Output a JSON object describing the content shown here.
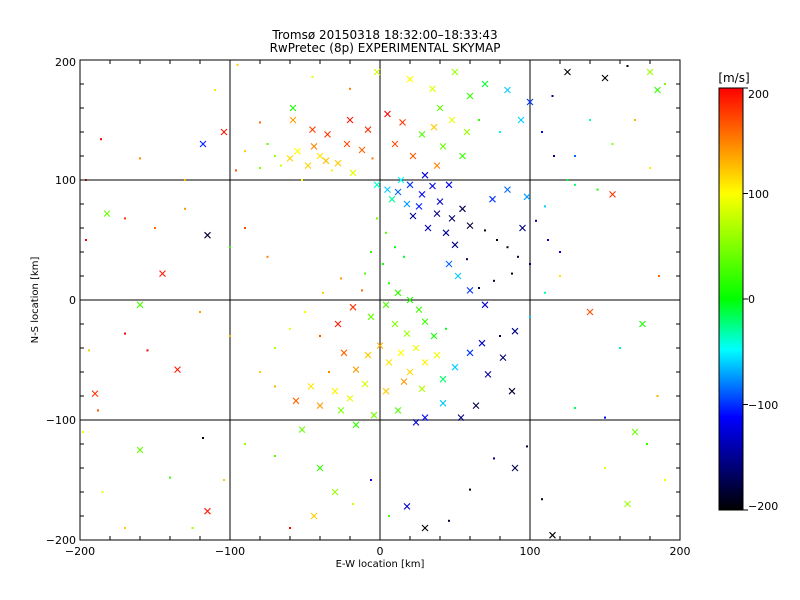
{
  "chart_data": {
    "type": "scatter",
    "title": "Tromsø 20150318 18:32:00–18:33:43",
    "subtitle": "RwPretec (8p) EXPERIMENTAL SKYMAP",
    "xlabel": "E-W location [km]",
    "ylabel": "N-S location [km]",
    "xlim": [
      -200,
      200
    ],
    "ylim": [
      -200,
      200
    ],
    "xticks": [
      "−200",
      "−100",
      "0",
      "100",
      "200"
    ],
    "yticks": [
      "−200",
      "−100",
      "0",
      "100",
      "200"
    ],
    "grid": true,
    "colorbar": {
      "label": "[m/s]",
      "range": [
        -200,
        200
      ],
      "ticks": [
        "200",
        "100",
        "0",
        "−100",
        "−200"
      ],
      "colormap": [
        "#000000",
        "#0000ff",
        "#00ffff",
        "#00ff00",
        "#ffff00",
        "#ff0000"
      ]
    },
    "markers": [
      "cross",
      "dot"
    ],
    "points": [
      [
        -118,
        130,
        -95,
        "x"
      ],
      [
        -104,
        140,
        190,
        "x"
      ],
      [
        -80,
        148,
        160,
        "d"
      ],
      [
        -58,
        150,
        140,
        "x"
      ],
      [
        -45,
        142,
        175,
        "x"
      ],
      [
        -35,
        138,
        180,
        "x"
      ],
      [
        -22,
        130,
        170,
        "x"
      ],
      [
        -12,
        125,
        160,
        "x"
      ],
      [
        -5,
        118,
        155,
        "d"
      ],
      [
        10,
        130,
        170,
        "x"
      ],
      [
        22,
        120,
        165,
        "x"
      ],
      [
        38,
        112,
        150,
        "x"
      ],
      [
        -60,
        118,
        115,
        "x"
      ],
      [
        -48,
        112,
        118,
        "x"
      ],
      [
        -40,
        120,
        110,
        "x"
      ],
      [
        -32,
        108,
        105,
        "d"
      ],
      [
        -52,
        100,
        95,
        "d"
      ],
      [
        -28,
        114,
        120,
        "x"
      ],
      [
        -18,
        106,
        90,
        "x"
      ],
      [
        -44,
        128,
        150,
        "x"
      ],
      [
        -55,
        124,
        100,
        "x"
      ],
      [
        -36,
        116,
        125,
        "x"
      ],
      [
        -66,
        112,
        80,
        "d"
      ],
      [
        -70,
        120,
        60,
        "d"
      ],
      [
        -80,
        110,
        45,
        "d"
      ],
      [
        -90,
        124,
        120,
        "d"
      ],
      [
        -96,
        108,
        170,
        "d"
      ],
      [
        -20,
        150,
        190,
        "x"
      ],
      [
        -8,
        142,
        185,
        "x"
      ],
      [
        5,
        155,
        200,
        "x"
      ],
      [
        15,
        148,
        180,
        "x"
      ],
      [
        28,
        138,
        30,
        "x"
      ],
      [
        42,
        128,
        40,
        "x"
      ],
      [
        55,
        120,
        20,
        "x"
      ],
      [
        -2,
        96,
        -40,
        "x"
      ],
      [
        5,
        92,
        -60,
        "x"
      ],
      [
        12,
        90,
        -80,
        "x"
      ],
      [
        20,
        96,
        -90,
        "x"
      ],
      [
        28,
        88,
        -100,
        "x"
      ],
      [
        35,
        95,
        -110,
        "x"
      ],
      [
        18,
        80,
        -70,
        "x"
      ],
      [
        26,
        78,
        -95,
        "x"
      ],
      [
        40,
        82,
        -120,
        "x"
      ],
      [
        46,
        96,
        -105,
        "x"
      ],
      [
        8,
        84,
        -30,
        "x"
      ],
      [
        14,
        100,
        -50,
        "x"
      ],
      [
        30,
        104,
        -115,
        "x"
      ],
      [
        22,
        70,
        -140,
        "x"
      ],
      [
        38,
        72,
        -150,
        "x"
      ],
      [
        48,
        68,
        -160,
        "x"
      ],
      [
        55,
        76,
        -170,
        "x"
      ],
      [
        60,
        62,
        -180,
        "x"
      ],
      [
        70,
        58,
        -190,
        "d"
      ],
      [
        78,
        50,
        -200,
        "d"
      ],
      [
        85,
        44,
        -190,
        "d"
      ],
      [
        92,
        36,
        -180,
        "d"
      ],
      [
        100,
        30,
        -170,
        "d"
      ],
      [
        88,
        22,
        -200,
        "d"
      ],
      [
        76,
        16,
        -185,
        "d"
      ],
      [
        66,
        10,
        -175,
        "d"
      ],
      [
        58,
        34,
        -160,
        "d"
      ],
      [
        50,
        46,
        -150,
        "x"
      ],
      [
        44,
        56,
        -140,
        "x"
      ],
      [
        32,
        60,
        -130,
        "x"
      ],
      [
        95,
        60,
        -150,
        "x"
      ],
      [
        104,
        66,
        -140,
        "d"
      ],
      [
        112,
        50,
        -120,
        "d"
      ],
      [
        120,
        40,
        -110,
        "d"
      ],
      [
        75,
        84,
        -90,
        "x"
      ],
      [
        85,
        92,
        -80,
        "x"
      ],
      [
        98,
        86,
        -70,
        "x"
      ],
      [
        110,
        78,
        -60,
        "d"
      ],
      [
        130,
        96,
        -20,
        "d"
      ],
      [
        145,
        92,
        10,
        "d"
      ],
      [
        155,
        88,
        180,
        "x"
      ],
      [
        125,
        100,
        -10,
        "d"
      ],
      [
        40,
        160,
        40,
        "x"
      ],
      [
        60,
        170,
        20,
        "x"
      ],
      [
        70,
        180,
        -10,
        "x"
      ],
      [
        85,
        175,
        -60,
        "x"
      ],
      [
        100,
        165,
        -90,
        "x"
      ],
      [
        115,
        170,
        -150,
        "d"
      ],
      [
        125,
        190,
        -200,
        "x"
      ],
      [
        150,
        185,
        -200,
        "x"
      ],
      [
        165,
        195,
        -190,
        "d"
      ],
      [
        180,
        190,
        60,
        "x"
      ],
      [
        185,
        175,
        20,
        "x"
      ],
      [
        190,
        180,
        50,
        "d"
      ],
      [
        -2,
        68,
        40,
        "d"
      ],
      [
        4,
        56,
        30,
        "d"
      ],
      [
        -6,
        40,
        20,
        "d"
      ],
      [
        2,
        30,
        10,
        "d"
      ],
      [
        10,
        44,
        0,
        "d"
      ],
      [
        16,
        36,
        -10,
        "d"
      ],
      [
        -10,
        22,
        30,
        "d"
      ],
      [
        6,
        14,
        15,
        "d"
      ],
      [
        12,
        6,
        20,
        "x"
      ],
      [
        20,
        0,
        10,
        "x"
      ],
      [
        26,
        -8,
        25,
        "x"
      ],
      [
        4,
        -4,
        30,
        "x"
      ],
      [
        -6,
        -14,
        40,
        "x"
      ],
      [
        10,
        -20,
        50,
        "x"
      ],
      [
        18,
        -28,
        60,
        "x"
      ],
      [
        30,
        -18,
        20,
        "x"
      ],
      [
        36,
        -30,
        5,
        "x"
      ],
      [
        44,
        -24,
        -5,
        "d"
      ],
      [
        24,
        -40,
        90,
        "x"
      ],
      [
        14,
        -44,
        100,
        "x"
      ],
      [
        6,
        -52,
        110,
        "x"
      ],
      [
        0,
        -38,
        130,
        "x"
      ],
      [
        -8,
        -46,
        120,
        "x"
      ],
      [
        30,
        -52,
        105,
        "x"
      ],
      [
        38,
        -46,
        95,
        "x"
      ],
      [
        20,
        -60,
        115,
        "x"
      ],
      [
        -16,
        -58,
        140,
        "x"
      ],
      [
        -24,
        -44,
        160,
        "x"
      ],
      [
        -34,
        -60,
        150,
        "d"
      ],
      [
        -40,
        -30,
        170,
        "d"
      ],
      [
        -28,
        -20,
        190,
        "x"
      ],
      [
        -18,
        -6,
        180,
        "x"
      ],
      [
        -12,
        8,
        160,
        "d"
      ],
      [
        -26,
        18,
        140,
        "d"
      ],
      [
        -38,
        6,
        120,
        "d"
      ],
      [
        -50,
        -10,
        100,
        "d"
      ],
      [
        -60,
        -24,
        90,
        "d"
      ],
      [
        -70,
        -40,
        70,
        "d"
      ],
      [
        -46,
        -72,
        110,
        "x"
      ],
      [
        -30,
        -76,
        105,
        "x"
      ],
      [
        -20,
        -82,
        90,
        "x"
      ],
      [
        -10,
        -70,
        80,
        "x"
      ],
      [
        4,
        -76,
        120,
        "x"
      ],
      [
        16,
        -68,
        140,
        "x"
      ],
      [
        28,
        -74,
        70,
        "x"
      ],
      [
        42,
        -66,
        -20,
        "x"
      ],
      [
        50,
        -56,
        -60,
        "x"
      ],
      [
        60,
        -44,
        -90,
        "x"
      ],
      [
        68,
        -36,
        -120,
        "x"
      ],
      [
        72,
        -62,
        -140,
        "x"
      ],
      [
        82,
        -48,
        -160,
        "x"
      ],
      [
        88,
        -76,
        -180,
        "x"
      ],
      [
        64,
        -88,
        -170,
        "x"
      ],
      [
        54,
        -98,
        -150,
        "x"
      ],
      [
        42,
        -86,
        -60,
        "x"
      ],
      [
        30,
        -98,
        -100,
        "x"
      ],
      [
        24,
        -102,
        -120,
        "x"
      ],
      [
        12,
        -92,
        30,
        "x"
      ],
      [
        -4,
        -96,
        45,
        "x"
      ],
      [
        -16,
        -104,
        20,
        "x"
      ],
      [
        -26,
        -92,
        50,
        "x"
      ],
      [
        -40,
        -88,
        140,
        "x"
      ],
      [
        -56,
        -84,
        160,
        "x"
      ],
      [
        -70,
        -72,
        130,
        "d"
      ],
      [
        -80,
        -60,
        120,
        "d"
      ],
      [
        -100,
        -30,
        130,
        "d"
      ],
      [
        -120,
        -10,
        140,
        "d"
      ],
      [
        -135,
        -58,
        190,
        "x"
      ],
      [
        -155,
        -42,
        200,
        "d"
      ],
      [
        -170,
        -28,
        200,
        "d"
      ],
      [
        -190,
        -78,
        180,
        "x"
      ],
      [
        -188,
        -92,
        170,
        "d"
      ],
      [
        -160,
        -4,
        30,
        "x"
      ],
      [
        -145,
        22,
        190,
        "x"
      ],
      [
        -182,
        72,
        40,
        "x"
      ],
      [
        -170,
        68,
        180,
        "d"
      ],
      [
        -150,
        60,
        160,
        "d"
      ],
      [
        -130,
        76,
        140,
        "d"
      ],
      [
        -115,
        54,
        -180,
        "x"
      ],
      [
        -100,
        44,
        20,
        "d"
      ],
      [
        -90,
        60,
        170,
        "d"
      ],
      [
        -75,
        36,
        150,
        "d"
      ],
      [
        -160,
        -125,
        40,
        "x"
      ],
      [
        -140,
        -148,
        20,
        "d"
      ],
      [
        -115,
        -176,
        190,
        "x"
      ],
      [
        -104,
        -150,
        120,
        "d"
      ],
      [
        -118,
        -115,
        -200,
        "d"
      ],
      [
        -90,
        -120,
        60,
        "d"
      ],
      [
        -70,
        -130,
        30,
        "d"
      ],
      [
        -52,
        -108,
        40,
        "x"
      ],
      [
        -40,
        -140,
        20,
        "x"
      ],
      [
        -30,
        -160,
        60,
        "x"
      ],
      [
        -18,
        -170,
        80,
        "d"
      ],
      [
        -6,
        -150,
        -100,
        "d"
      ],
      [
        6,
        -180,
        30,
        "d"
      ],
      [
        18,
        -172,
        -120,
        "x"
      ],
      [
        30,
        -190,
        -200,
        "x"
      ],
      [
        46,
        -184,
        -180,
        "d"
      ],
      [
        60,
        -158,
        -190,
        "d"
      ],
      [
        76,
        -132,
        -150,
        "d"
      ],
      [
        90,
        -140,
        -170,
        "x"
      ],
      [
        98,
        -122,
        -180,
        "d"
      ],
      [
        108,
        -166,
        -190,
        "d"
      ],
      [
        115,
        -196,
        -200,
        "x"
      ],
      [
        130,
        -90,
        -20,
        "d"
      ],
      [
        150,
        -98,
        -100,
        "d"
      ],
      [
        170,
        -110,
        40,
        "x"
      ],
      [
        178,
        -120,
        20,
        "d"
      ],
      [
        175,
        -20,
        10,
        "x"
      ],
      [
        160,
        -40,
        -30,
        "d"
      ],
      [
        140,
        -10,
        170,
        "x"
      ],
      [
        120,
        20,
        110,
        "d"
      ],
      [
        110,
        6,
        -30,
        "d"
      ],
      [
        100,
        -14,
        -60,
        "d"
      ],
      [
        90,
        -26,
        -150,
        "x"
      ],
      [
        80,
        -30,
        -170,
        "d"
      ],
      [
        70,
        -4,
        -120,
        "x"
      ],
      [
        60,
        8,
        -90,
        "x"
      ],
      [
        52,
        20,
        -60,
        "x"
      ],
      [
        46,
        30,
        -80,
        "x"
      ],
      [
        -2,
        190,
        80,
        "x"
      ],
      [
        20,
        184,
        100,
        "x"
      ],
      [
        35,
        176,
        90,
        "x"
      ],
      [
        50,
        190,
        60,
        "x"
      ],
      [
        -20,
        176,
        150,
        "d"
      ],
      [
        -58,
        160,
        10,
        "x"
      ],
      [
        -75,
        130,
        30,
        "d"
      ],
      [
        -110,
        175,
        110,
        "d"
      ],
      [
        -95,
        196,
        120,
        "d"
      ],
      [
        -45,
        186,
        90,
        "d"
      ],
      [
        -130,
        100,
        130,
        "d"
      ],
      [
        -160,
        118,
        150,
        "d"
      ],
      [
        -186,
        134,
        200,
        "d"
      ],
      [
        -196,
        100,
        180,
        "d"
      ],
      [
        -196,
        50,
        200,
        "d"
      ],
      [
        -194,
        -42,
        120,
        "d"
      ],
      [
        -198,
        -110,
        100,
        "d"
      ],
      [
        -185,
        -160,
        90,
        "d"
      ],
      [
        -170,
        -190,
        120,
        "d"
      ],
      [
        -125,
        -190,
        60,
        "d"
      ],
      [
        -60,
        -190,
        200,
        "d"
      ],
      [
        -44,
        -180,
        120,
        "x"
      ],
      [
        150,
        -140,
        90,
        "d"
      ],
      [
        165,
        -170,
        60,
        "x"
      ],
      [
        190,
        -150,
        100,
        "d"
      ],
      [
        185,
        -80,
        130,
        "d"
      ],
      [
        186,
        20,
        160,
        "d"
      ],
      [
        180,
        110,
        110,
        "d"
      ],
      [
        170,
        150,
        130,
        "d"
      ],
      [
        155,
        130,
        50,
        "d"
      ],
      [
        140,
        150,
        -40,
        "d"
      ],
      [
        130,
        120,
        -80,
        "d"
      ],
      [
        116,
        120,
        -150,
        "d"
      ],
      [
        108,
        140,
        -110,
        "d"
      ],
      [
        94,
        150,
        -60,
        "x"
      ],
      [
        80,
        140,
        -40,
        "d"
      ],
      [
        66,
        150,
        20,
        "d"
      ],
      [
        58,
        140,
        60,
        "x"
      ],
      [
        48,
        150,
        90,
        "x"
      ],
      [
        36,
        144,
        120,
        "x"
      ]
    ]
  }
}
